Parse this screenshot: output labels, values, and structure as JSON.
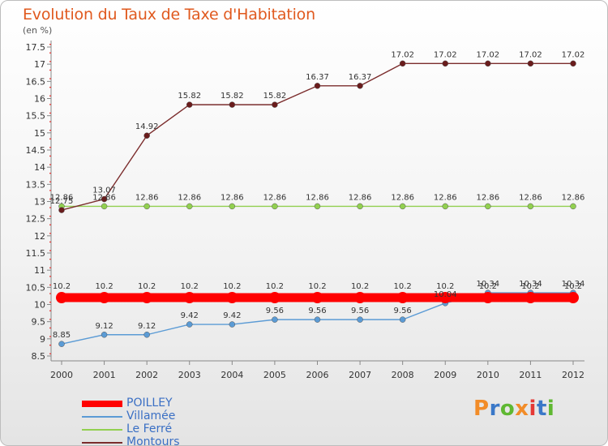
{
  "title": "Evolution du Taux de Taxe d'Habitation",
  "unit": "(en %)",
  "logo": "Proxiti",
  "colors": {
    "title": "#e0591e",
    "poilley": "#ff0000",
    "villamee": "#5b9bd5",
    "le_ferre": "#92d050",
    "montours": "#7b2c2c",
    "logo_colors": [
      "#f28c28",
      "#3a78c8",
      "#5fb832",
      "#f28c28",
      "#e53935",
      "#3a78c8",
      "#5fb832"
    ]
  },
  "chart_data": {
    "type": "line",
    "x": [
      "2000",
      "2001",
      "2002",
      "2003",
      "2004",
      "2005",
      "2006",
      "2007",
      "2008",
      "2009",
      "2010",
      "2011",
      "2012"
    ],
    "yticks": [
      "8.5",
      "9",
      "9.5",
      "10",
      "10.5",
      "11",
      "11.5",
      "12",
      "12.5",
      "13",
      "13.5",
      "14",
      "14.5",
      "15",
      "15.5",
      "16",
      "16.5",
      "17",
      "17.5"
    ],
    "ylim": [
      8.5,
      17.5
    ],
    "grid": false,
    "legend_position": "bottom-left",
    "series": [
      {
        "name": "POILLEY",
        "values": [
          10.2,
          10.2,
          10.2,
          10.2,
          10.2,
          10.2,
          10.2,
          10.2,
          10.2,
          10.2,
          10.2,
          10.2,
          10.2
        ],
        "labels": [
          "10.2",
          "10.2",
          "10.2",
          "10.2",
          "10.2",
          "10.2",
          "10.2",
          "10.2",
          "10.2",
          "10.2",
          "10.2",
          "10.2",
          "10.2"
        ]
      },
      {
        "name": "Villamée",
        "values": [
          8.85,
          9.12,
          9.12,
          9.42,
          9.42,
          9.56,
          9.56,
          9.56,
          9.56,
          10.04,
          10.34,
          10.34,
          10.34
        ],
        "labels": [
          "8.85",
          "9.12",
          "9.12",
          "9.42",
          "9.42",
          "9.56",
          "9.56",
          "9.56",
          "9.56",
          "10.04",
          "10.34",
          "10.34",
          "10.34"
        ]
      },
      {
        "name": "Le Ferré",
        "values": [
          12.86,
          12.86,
          12.86,
          12.86,
          12.86,
          12.86,
          12.86,
          12.86,
          12.86,
          12.86,
          12.86,
          12.86,
          12.86
        ],
        "labels": [
          "12.86",
          "12.86",
          "12.86",
          "12.86",
          "12.86",
          "12.86",
          "12.86",
          "12.86",
          "12.86",
          "12.86",
          "12.86",
          "12.86",
          "12.86"
        ]
      },
      {
        "name": "Montours",
        "values": [
          12.75,
          13.07,
          14.92,
          15.82,
          15.82,
          15.82,
          16.37,
          16.37,
          17.02,
          17.02,
          17.02,
          17.02,
          17.02
        ],
        "labels": [
          "12.75",
          "13.07",
          "14.92",
          "15.82",
          "15.82",
          "15.82",
          "16.37",
          "16.37",
          "17.02",
          "17.02",
          "17.02",
          "17.02",
          "17.02"
        ]
      }
    ]
  }
}
